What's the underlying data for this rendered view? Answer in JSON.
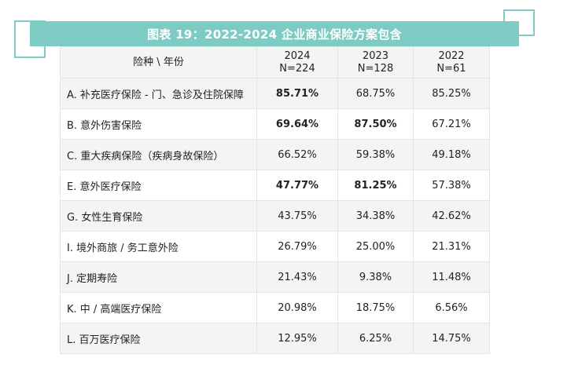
{
  "title": "图表 19：2022-2024 企业商业保险方案包含",
  "header": {
    "category": "险种 \\ 年份",
    "columns": [
      {
        "year": "2024",
        "n": "N=224"
      },
      {
        "year": "2023",
        "n": "N=128"
      },
      {
        "year": "2022",
        "n": "N=61"
      }
    ]
  },
  "rows": [
    {
      "label": "A. 补充医疗保险 - 门、急诊及住院保障",
      "values": [
        "85.71%",
        "68.75%",
        "85.25%"
      ],
      "bold": [
        true,
        false,
        false
      ]
    },
    {
      "label": "B. 意外伤害保险",
      "values": [
        "69.64%",
        "87.50%",
        "67.21%"
      ],
      "bold": [
        true,
        true,
        false
      ]
    },
    {
      "label": "C. 重大疾病保险（疾病身故保险）",
      "values": [
        "66.52%",
        "59.38%",
        "49.18%"
      ],
      "bold": [
        false,
        false,
        false
      ]
    },
    {
      "label": "E. 意外医疗保险",
      "values": [
        "47.77%",
        "81.25%",
        "57.38%"
      ],
      "bold": [
        true,
        true,
        false
      ]
    },
    {
      "label": "G. 女性生育保险",
      "values": [
        "43.75%",
        "34.38%",
        "42.62%"
      ],
      "bold": [
        false,
        false,
        false
      ]
    },
    {
      "label": "I. 境外商旅 / 务工意外险",
      "values": [
        "26.79%",
        "25.00%",
        "21.31%"
      ],
      "bold": [
        false,
        false,
        false
      ]
    },
    {
      "label": "J. 定期寿险",
      "values": [
        "21.43%",
        "9.38%",
        "11.48%"
      ],
      "bold": [
        false,
        false,
        false
      ]
    },
    {
      "label": "K. 中 / 高端医疗保险",
      "values": [
        "20.98%",
        "18.75%",
        "6.56%"
      ],
      "bold": [
        false,
        false,
        false
      ]
    },
    {
      "label": "L. 百万医疗保险",
      "values": [
        "12.95%",
        "6.25%",
        "14.75%"
      ],
      "bold": [
        false,
        false,
        false
      ]
    }
  ],
  "colors": {
    "accent": "#7ecbc4",
    "row_alt": "#f3f5f5",
    "border": "#e3e6e6"
  }
}
